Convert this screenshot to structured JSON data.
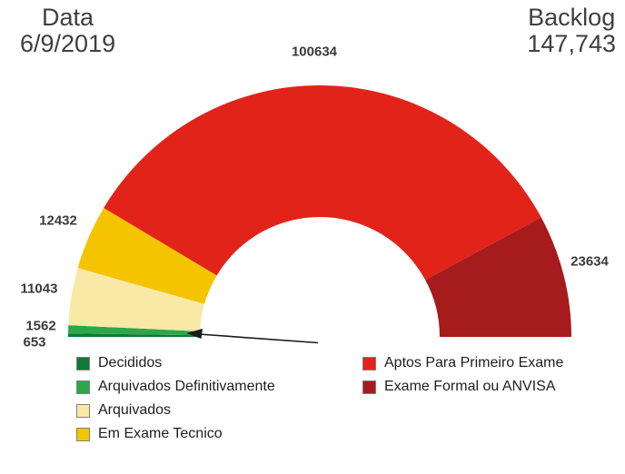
{
  "header": {
    "date_label": "Data",
    "date_value": "6/9/2019",
    "backlog_label": "Backlog",
    "backlog_value": "147,743"
  },
  "chart_data": {
    "type": "pie",
    "variant": "half-donut-gauge",
    "title": "",
    "slices": [
      {
        "label": "Decididos",
        "value": 653,
        "color": "#0f7a38"
      },
      {
        "label": "Arquivados Definitivamente",
        "value": 1562,
        "color": "#2ba84a"
      },
      {
        "label": "Arquivados",
        "value": 11043,
        "color": "#f8e9a6"
      },
      {
        "label": "Em Exame Tecnico",
        "value": 12432,
        "color": "#f5c400"
      },
      {
        "label": "Aptos Para Primeiro Exame",
        "value": 100634,
        "color": "#e2231a"
      },
      {
        "label": "Exame Formal ou ANVISA",
        "value": 23634,
        "color": "#a61b1b"
      }
    ],
    "legend_position": "bottom",
    "legend_columns": [
      [
        0,
        1,
        2,
        3
      ],
      [
        4,
        5
      ]
    ],
    "annotation": "arrow pointing to smallest slices (Decididos / Arquivados Definitivamente)",
    "backlog_total": "147,743"
  }
}
